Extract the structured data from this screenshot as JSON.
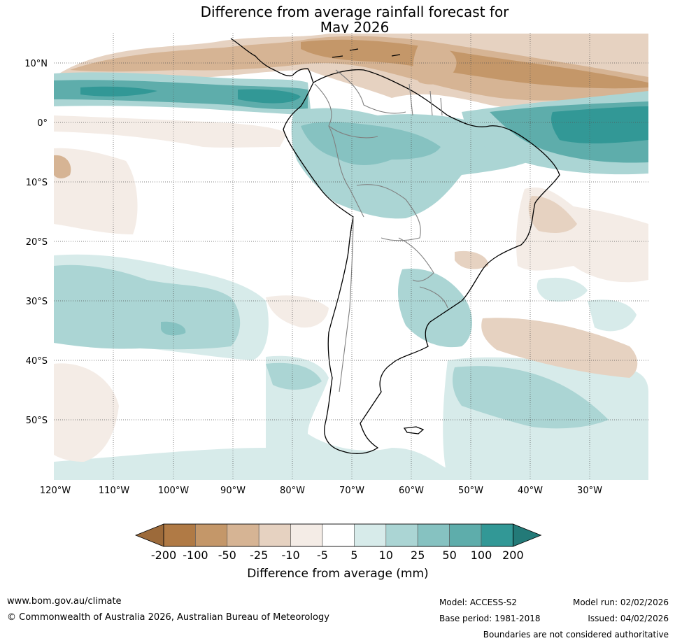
{
  "title_line1": "Difference from average rainfall forecast for",
  "title_line2": "May 2026",
  "axes": {
    "lat_labels": [
      "10°N",
      "0°",
      "10°S",
      "20°S",
      "30°S",
      "40°S",
      "50°S"
    ],
    "lon_labels": [
      "120°W",
      "110°W",
      "100°W",
      "90°W",
      "80°W",
      "70°W",
      "60°W",
      "50°W",
      "40°W",
      "30°W"
    ]
  },
  "colorbar": {
    "title": "Difference from average (mm)",
    "ticks": [
      "-200",
      "-100",
      "-50",
      "-25",
      "-10",
      "-5",
      "5",
      "10",
      "25",
      "50",
      "100",
      "200"
    ],
    "colors": [
      "#9c6a3a",
      "#b07a45",
      "#c49769",
      "#d6b494",
      "#e6d2c1",
      "#f4ece6",
      "#ffffff",
      "#d7ebea",
      "#abd5d4",
      "#86c2c1",
      "#5eadab",
      "#329896",
      "#237a78"
    ]
  },
  "legend_colors": {
    "dry_strong": "#c49769",
    "dry": "#d6b494",
    "dry_light": "#e6d2c1",
    "dry_faint": "#f4ece6",
    "wet_faint": "#d7ebea",
    "wet_light": "#abd5d4",
    "wet": "#86c2c1",
    "wet_strong": "#5eadab",
    "wet_max": "#329896"
  },
  "footer": {
    "url": "www.bom.gov.au/climate",
    "copyright": "© Commonwealth of Australia 2026, Australian Bureau of Meteorology",
    "model": "Model: ACCESS-S2",
    "base_period": "Base period: 1981-2018",
    "model_run": "Model run: 02/02/2026",
    "issued": "Issued: 04/02/2026",
    "disclaimer": "Boundaries are not considered authoritative"
  }
}
